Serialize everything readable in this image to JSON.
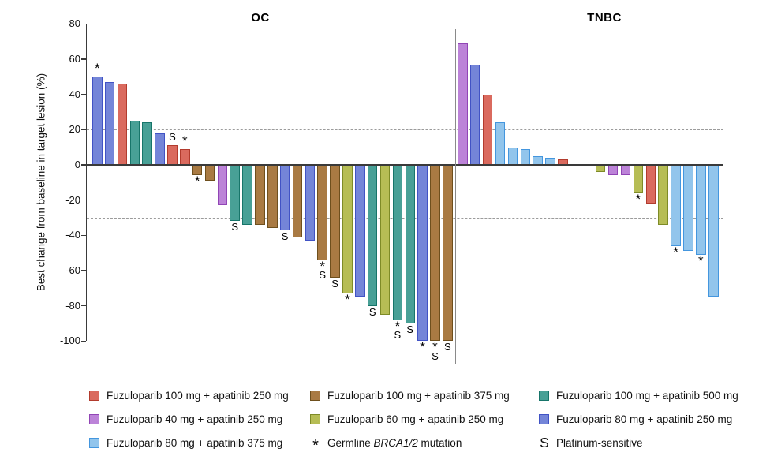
{
  "chart_data": {
    "type": "bar",
    "subtype": "waterfall",
    "title": "",
    "xlabel": "",
    "ylabel": "Best change from baseline in target lesion (%)",
    "ylim": [
      -100,
      80
    ],
    "yticks": [
      80,
      60,
      40,
      20,
      0,
      -20,
      -40,
      -60,
      -80,
      -100
    ],
    "reference_lines": [
      20,
      -30
    ],
    "grid": "off",
    "legend_position": "bottom",
    "marker_meanings": {
      "*": "Germline BRCA1/2 mutation",
      "S": "Platinum-sensitive"
    },
    "palette": {
      "red": {
        "fill": "#DA6A5E",
        "border": "#B23B2D"
      },
      "purple": {
        "fill": "#BC83D8",
        "border": "#9145B5"
      },
      "lightblue": {
        "fill": "#92C5EC",
        "border": "#4496DE"
      },
      "brown": {
        "fill": "#A97A43",
        "border": "#6E4F1D"
      },
      "yellow": {
        "fill": "#B6BD55",
        "border": "#7E8B27"
      },
      "teal": {
        "fill": "#48A096",
        "border": "#17756A"
      },
      "blue": {
        "fill": "#7485D8",
        "border": "#4153C5"
      },
      "none": {
        "fill": "transparent",
        "border": "transparent"
      }
    },
    "groups": [
      {
        "label": "OC",
        "bars": [
          {
            "value": 50,
            "color": "blue",
            "mark": "*"
          },
          {
            "value": 47,
            "color": "blue",
            "mark": ""
          },
          {
            "value": 46,
            "color": "red",
            "mark": ""
          },
          {
            "value": 25,
            "color": "teal",
            "mark": ""
          },
          {
            "value": 24,
            "color": "teal",
            "mark": ""
          },
          {
            "value": 18,
            "color": "blue",
            "mark": ""
          },
          {
            "value": 11,
            "color": "red",
            "mark": "S"
          },
          {
            "value": 9,
            "color": "red",
            "mark": "*"
          },
          {
            "value": -6,
            "color": "brown",
            "mark": "*"
          },
          {
            "value": -9,
            "color": "brown",
            "mark": ""
          },
          {
            "value": -23,
            "color": "purple",
            "mark": ""
          },
          {
            "value": -32,
            "color": "teal",
            "mark": "S"
          },
          {
            "value": -34,
            "color": "teal",
            "mark": ""
          },
          {
            "value": -34,
            "color": "brown",
            "mark": ""
          },
          {
            "value": -36,
            "color": "brown",
            "mark": ""
          },
          {
            "value": -37,
            "color": "blue",
            "mark": "S"
          },
          {
            "value": -41,
            "color": "brown",
            "mark": ""
          },
          {
            "value": -43,
            "color": "blue",
            "mark": ""
          },
          {
            "value": -54,
            "color": "brown",
            "mark": "*S"
          },
          {
            "value": -64,
            "color": "brown",
            "mark": "S"
          },
          {
            "value": -73,
            "color": "yellow",
            "mark": "*"
          },
          {
            "value": -75,
            "color": "blue",
            "mark": ""
          },
          {
            "value": -80,
            "color": "teal",
            "mark": "S"
          },
          {
            "value": -85,
            "color": "yellow",
            "mark": ""
          },
          {
            "value": -88,
            "color": "teal",
            "mark": "*S"
          },
          {
            "value": -90,
            "color": "teal",
            "mark": "S"
          },
          {
            "value": -100,
            "color": "blue",
            "mark": "*"
          },
          {
            "value": -100,
            "color": "brown",
            "mark": "*S"
          },
          {
            "value": -100,
            "color": "brown",
            "mark": "S"
          }
        ]
      },
      {
        "label": "TNBC",
        "bars": [
          {
            "value": 69,
            "color": "purple",
            "mark": ""
          },
          {
            "value": 57,
            "color": "blue",
            "mark": ""
          },
          {
            "value": 40,
            "color": "red",
            "mark": ""
          },
          {
            "value": 24,
            "color": "lightblue",
            "mark": ""
          },
          {
            "value": 10,
            "color": "lightblue",
            "mark": ""
          },
          {
            "value": 9,
            "color": "lightblue",
            "mark": ""
          },
          {
            "value": 5,
            "color": "lightblue",
            "mark": ""
          },
          {
            "value": 4,
            "color": "lightblue",
            "mark": ""
          },
          {
            "value": 3,
            "color": "red",
            "mark": ""
          },
          {
            "value": 0,
            "color": "none",
            "mark": ""
          },
          {
            "value": 0,
            "color": "none",
            "mark": ""
          },
          {
            "value": -4,
            "color": "yellow",
            "mark": ""
          },
          {
            "value": -6,
            "color": "purple",
            "mark": ""
          },
          {
            "value": -6,
            "color": "purple",
            "mark": ""
          },
          {
            "value": -16,
            "color": "yellow",
            "mark": "*"
          },
          {
            "value": -22,
            "color": "red",
            "mark": ""
          },
          {
            "value": -34,
            "color": "yellow",
            "mark": ""
          },
          {
            "value": -46,
            "color": "lightblue",
            "mark": "*"
          },
          {
            "value": -49,
            "color": "lightblue",
            "mark": ""
          },
          {
            "value": -51,
            "color": "lightblue",
            "mark": "*"
          },
          {
            "value": -75,
            "color": "lightblue",
            "mark": ""
          }
        ]
      }
    ],
    "legend": {
      "columns": [
        [
          {
            "color": "red",
            "label": "Fuzuloparib 100 mg + apatinib 250 mg"
          },
          {
            "color": "purple",
            "label": "Fuzuloparib 40 mg + apatinib 250 mg"
          },
          {
            "color": "lightblue",
            "label": "Fuzuloparib 80 mg + apatinib 375 mg"
          }
        ],
        [
          {
            "color": "brown",
            "label": "Fuzuloparib 100 mg + apatinib 375 mg"
          },
          {
            "color": "yellow",
            "label": "Fuzuloparib 60 mg + apatinib 250 mg"
          },
          {
            "marker": "*",
            "label_prefix": "Germline ",
            "label_italic": "BRCA1/2",
            "label_suffix": " mutation"
          }
        ],
        [
          {
            "color": "teal",
            "label": "Fuzuloparib 100 mg + apatinib 500 mg"
          },
          {
            "color": "blue",
            "label": "Fuzuloparib 80 mg + apatinib 250 mg"
          },
          {
            "marker": "S",
            "label": "Platinum-sensitive"
          }
        ]
      ]
    }
  }
}
